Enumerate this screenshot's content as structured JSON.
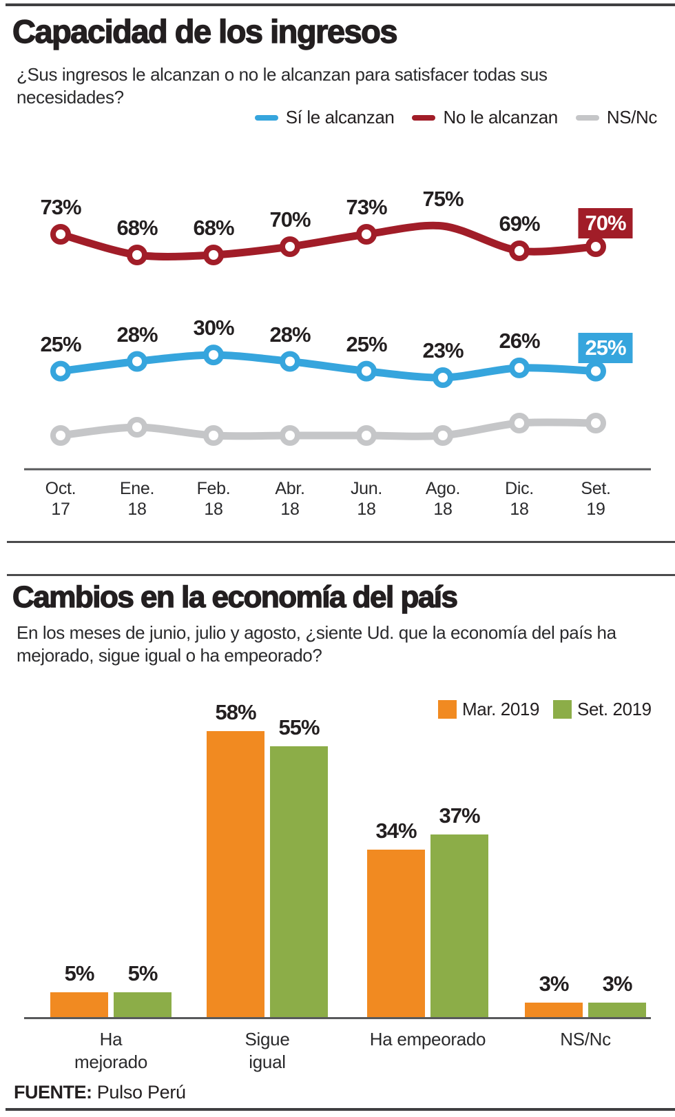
{
  "source": {
    "label": "FUENTE:",
    "name": "Pulso Perú"
  },
  "chart_data": [
    {
      "type": "line",
      "title": "Capacidad de los ingresos",
      "question": "¿Sus ingresos le alcanzan o no le alcanzan para satisfacer todas sus necesidades?",
      "x_tick_labels": [
        [
          "Oct.",
          "17"
        ],
        [
          "Ene.",
          "18"
        ],
        [
          "Feb.",
          "18"
        ],
        [
          "Abr.",
          "18"
        ],
        [
          "Jun.",
          "18"
        ],
        [
          "Ago.",
          "18"
        ],
        [
          "Dic.",
          "18"
        ],
        [
          "Set.",
          "19"
        ]
      ],
      "unit": "%",
      "ylim": [
        0,
        100
      ],
      "grid": false,
      "legend_position": "top-right",
      "series": [
        {
          "name": "Sí le alcanzan",
          "color": "#36a5dd",
          "values": [
            25,
            28,
            30,
            28,
            25,
            23,
            26,
            25
          ],
          "labels_shown": true,
          "last_label_boxed": true
        },
        {
          "name": "No le alcanzan",
          "color": "#a11d28",
          "values": [
            73,
            68,
            68,
            70,
            73,
            75,
            69,
            70
          ],
          "labels_shown": true,
          "last_label_boxed": true
        },
        {
          "name": "NS/Nc",
          "color": "#c5c6c8",
          "values": [
            2,
            4,
            2,
            2,
            2,
            2,
            5,
            5
          ],
          "labels_shown": false,
          "note": "values not labeled in figure; estimated from line position"
        }
      ]
    },
    {
      "type": "bar",
      "title": "Cambios en la economía del país",
      "question": "En los meses de junio, julio y agosto, ¿siente Ud. que la economía del país ha mejorado, sigue igual o ha empeorado?",
      "categories": [
        "Ha mejorado",
        "Sigue igual",
        "Ha empeorado",
        "NS/Nc"
      ],
      "category_lines": [
        [
          "Ha",
          "mejorado"
        ],
        [
          "Sigue",
          "igual"
        ],
        [
          "Ha empeorado"
        ],
        [
          "NS/Nc"
        ]
      ],
      "unit": "%",
      "ylim": [
        0,
        60
      ],
      "grid": false,
      "legend_position": "top-right",
      "series": [
        {
          "name": "Mar. 2019",
          "color": "#f18a21",
          "values": [
            5,
            58,
            34,
            3
          ]
        },
        {
          "name": "Set. 2019",
          "color": "#8cad48",
          "values": [
            5,
            55,
            37,
            3
          ]
        }
      ]
    }
  ]
}
